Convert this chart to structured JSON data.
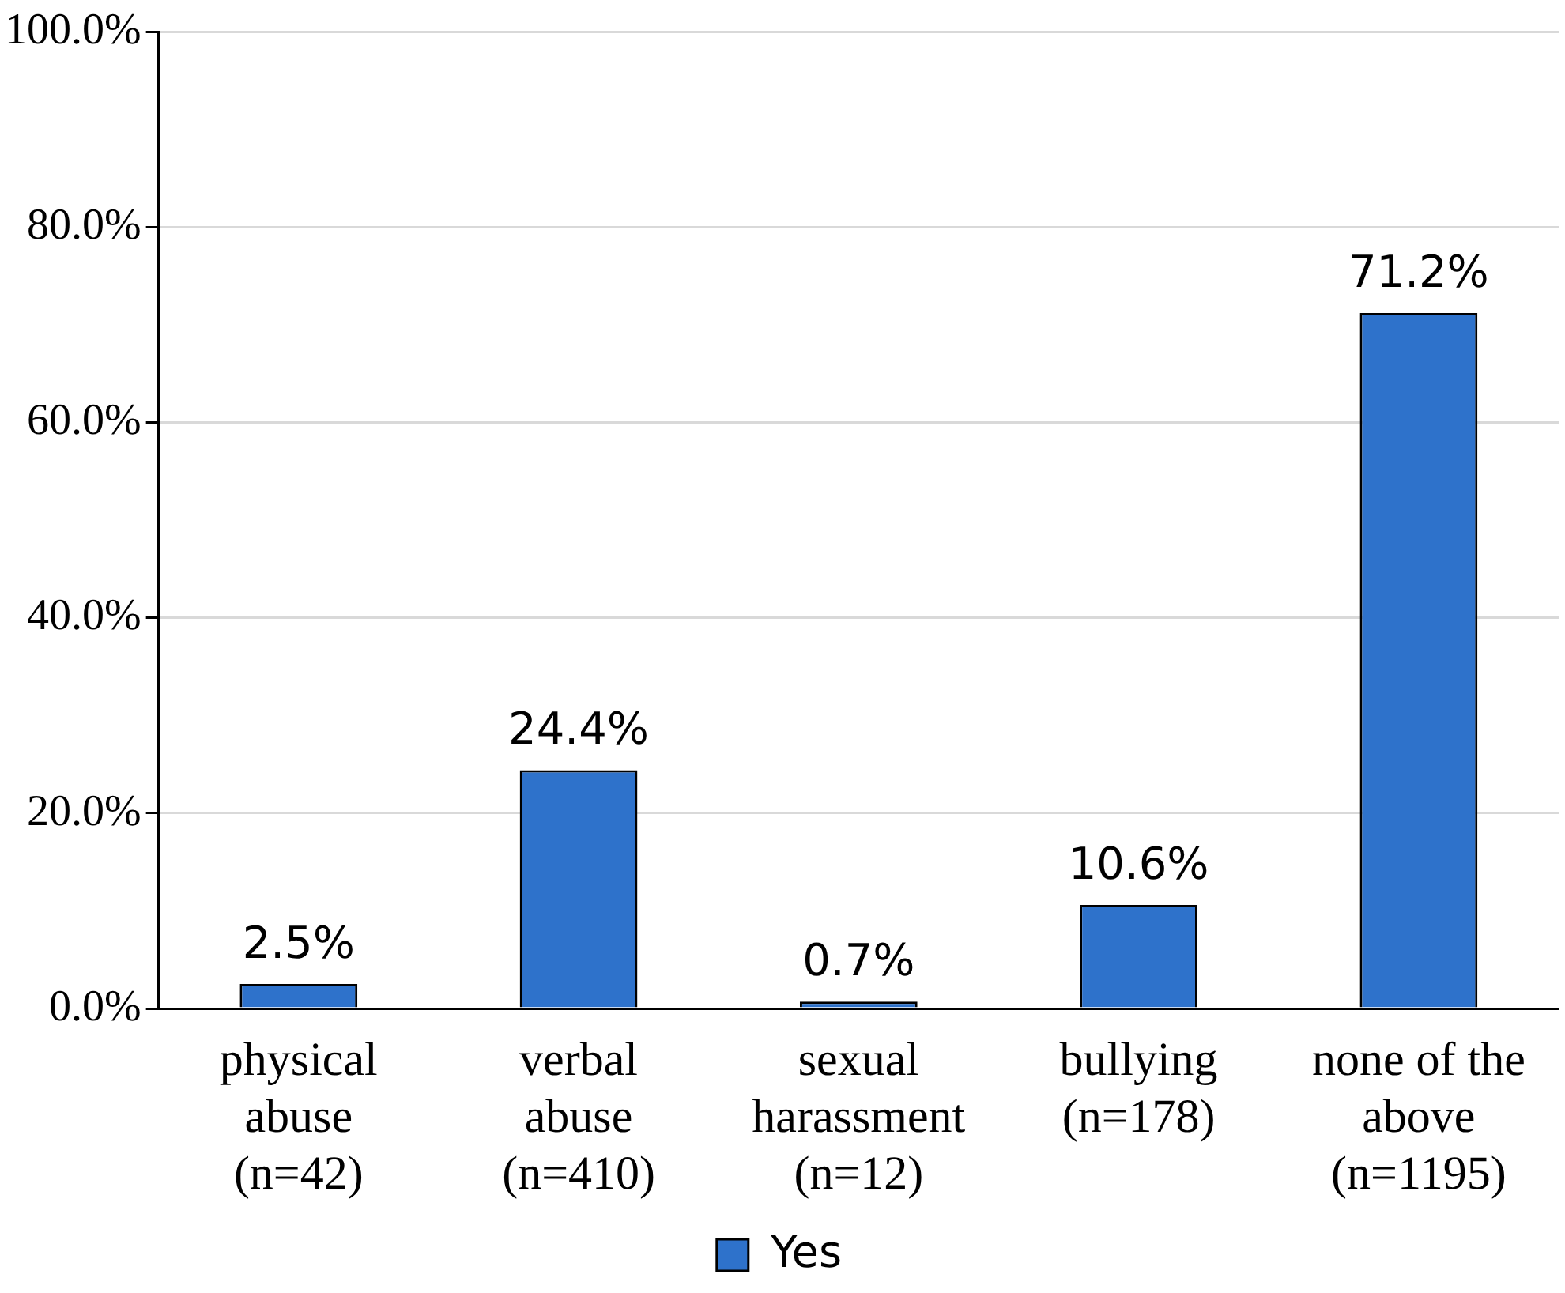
{
  "chart_data": {
    "type": "bar",
    "categories": [
      "physical abuse (n=42)",
      "verbal abuse (n=410)",
      "sexual harassment (n=12)",
      "bullying (n=178)",
      "none of the above (n=1195)"
    ],
    "series": [
      {
        "name": "Yes",
        "color": "#2e72cb",
        "values": [
          2.5,
          24.4,
          0.7,
          10.6,
          71.2
        ],
        "value_labels": [
          "2.5%",
          "24.4%",
          "0.7%",
          "10.6%",
          "71.2%"
        ]
      }
    ],
    "ylim": [
      0,
      100
    ],
    "yticks": [
      {
        "value": 0,
        "label": "0.0%"
      },
      {
        "value": 20,
        "label": "20.0%"
      },
      {
        "value": 40,
        "label": "40.0%"
      },
      {
        "value": 60,
        "label": "60.0%"
      },
      {
        "value": 80,
        "label": "80.0%"
      },
      {
        "value": 100,
        "label": "100.0%"
      }
    ],
    "grid": "y",
    "legend": "bottom"
  }
}
